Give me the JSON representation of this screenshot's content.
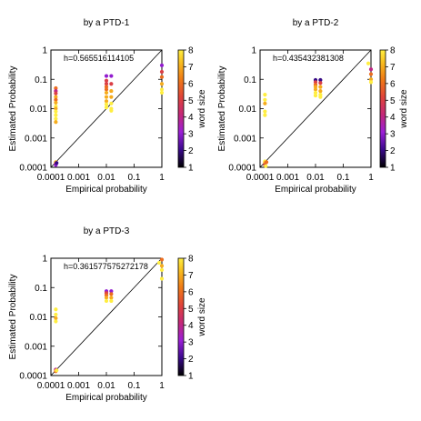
{
  "chart_data": [
    {
      "type": "scatter",
      "title": "by  a PTD-1",
      "xlabel": "Empirical probability",
      "ylabel": "Estimated Probability",
      "xscale": "log",
      "yscale": "log",
      "xlim": [
        0.0001,
        1
      ],
      "ylim": [
        0.0001,
        1
      ],
      "x_ticks": [
        "0.0001",
        "0.001",
        "0.01",
        "0.1",
        "1"
      ],
      "y_ticks": [
        "0.0001",
        "0.001",
        "0.01",
        "0.1",
        "1"
      ],
      "annotation": "h=0.565516114105",
      "colorbar": {
        "label": "word size",
        "range": [
          1,
          8
        ],
        "ticks": [
          "1",
          "2",
          "3",
          "4",
          "5",
          "6",
          "7",
          "8"
        ]
      },
      "reference_line": "y = x",
      "grid": false,
      "points": [
        {
          "x": 0.00015,
          "y": 0.00015,
          "size": 7
        },
        {
          "x": 0.00015,
          "y": 0.00013,
          "size": 5
        },
        {
          "x": 0.00015,
          "y": 0.00012,
          "size": 3
        },
        {
          "x": 0.00016,
          "y": 0.00014,
          "size": 2
        },
        {
          "x": 0.00015,
          "y": 0.05,
          "size": 6
        },
        {
          "x": 0.00015,
          "y": 0.04,
          "size": 4
        },
        {
          "x": 0.00015,
          "y": 0.033,
          "size": 5
        },
        {
          "x": 0.00015,
          "y": 0.025,
          "size": 7
        },
        {
          "x": 0.00015,
          "y": 0.02,
          "size": 6
        },
        {
          "x": 0.00015,
          "y": 0.016,
          "size": 7
        },
        {
          "x": 0.00015,
          "y": 0.012,
          "size": 8
        },
        {
          "x": 0.00015,
          "y": 0.01,
          "size": 7
        },
        {
          "x": 0.00015,
          "y": 0.008,
          "size": 8
        },
        {
          "x": 0.00015,
          "y": 0.006,
          "size": 8
        },
        {
          "x": 0.00015,
          "y": 0.0045,
          "size": 8
        },
        {
          "x": 0.00015,
          "y": 0.0035,
          "size": 7
        },
        {
          "x": 0.01,
          "y": 0.13,
          "size": 3
        },
        {
          "x": 0.01,
          "y": 0.09,
          "size": 5
        },
        {
          "x": 0.01,
          "y": 0.07,
          "size": 5
        },
        {
          "x": 0.01,
          "y": 0.055,
          "size": 6
        },
        {
          "x": 0.01,
          "y": 0.045,
          "size": 6
        },
        {
          "x": 0.01,
          "y": 0.035,
          "size": 7
        },
        {
          "x": 0.01,
          "y": 0.025,
          "size": 7
        },
        {
          "x": 0.01,
          "y": 0.018,
          "size": 7
        },
        {
          "x": 0.01,
          "y": 0.014,
          "size": 8
        },
        {
          "x": 0.01,
          "y": 0.011,
          "size": 8
        },
        {
          "x": 0.015,
          "y": 0.13,
          "size": 3
        },
        {
          "x": 0.015,
          "y": 0.07,
          "size": 5
        },
        {
          "x": 0.015,
          "y": 0.04,
          "size": 7
        },
        {
          "x": 0.015,
          "y": 0.025,
          "size": 7
        },
        {
          "x": 0.015,
          "y": 0.015,
          "size": 8
        },
        {
          "x": 0.015,
          "y": 0.01,
          "size": 8
        },
        {
          "x": 0.015,
          "y": 0.0085,
          "size": 8
        },
        {
          "x": 1,
          "y": 0.3,
          "size": 3
        },
        {
          "x": 1,
          "y": 0.18,
          "size": 5
        },
        {
          "x": 1,
          "y": 0.12,
          "size": 6
        },
        {
          "x": 1,
          "y": 0.07,
          "size": 7
        },
        {
          "x": 1,
          "y": 0.045,
          "size": 8
        },
        {
          "x": 1,
          "y": 0.035,
          "size": 8
        }
      ]
    },
    {
      "type": "scatter",
      "title": "by  a PTD-2",
      "xlabel": "Empirical probability",
      "ylabel": "Estimated Probability",
      "xscale": "log",
      "yscale": "log",
      "xlim": [
        0.0001,
        1
      ],
      "ylim": [
        0.0001,
        1
      ],
      "x_ticks": [
        "0.0001",
        "0.001",
        "0.01",
        "0.1",
        "1"
      ],
      "y_ticks": [
        "0.0001",
        "0.001",
        "0.01",
        "0.1",
        "1"
      ],
      "annotation": "h=0.435432381308",
      "colorbar": {
        "label": "word size",
        "range": [
          1,
          8
        ],
        "ticks": [
          "1",
          "2",
          "3",
          "4",
          "5",
          "6",
          "7",
          "8"
        ]
      },
      "reference_line": "y = x",
      "grid": false,
      "points": [
        {
          "x": 0.00015,
          "y": 0.00016,
          "size": 8
        },
        {
          "x": 0.00015,
          "y": 0.00014,
          "size": 7
        },
        {
          "x": 0.00015,
          "y": 0.00012,
          "size": 5
        },
        {
          "x": 0.00017,
          "y": 0.00015,
          "size": 6
        },
        {
          "x": 0.00016,
          "y": 0.00011,
          "size": 8
        },
        {
          "x": 0.00015,
          "y": 0.03,
          "size": 8
        },
        {
          "x": 0.00015,
          "y": 0.02,
          "size": 8
        },
        {
          "x": 0.00015,
          "y": 0.015,
          "size": 7
        },
        {
          "x": 0.00015,
          "y": 0.008,
          "size": 8
        },
        {
          "x": 0.00015,
          "y": 0.006,
          "size": 8
        },
        {
          "x": 0.01,
          "y": 0.095,
          "size": 2
        },
        {
          "x": 0.01,
          "y": 0.08,
          "size": 5
        },
        {
          "x": 0.01,
          "y": 0.065,
          "size": 6
        },
        {
          "x": 0.01,
          "y": 0.055,
          "size": 7
        },
        {
          "x": 0.01,
          "y": 0.045,
          "size": 7
        },
        {
          "x": 0.01,
          "y": 0.035,
          "size": 8
        },
        {
          "x": 0.01,
          "y": 0.028,
          "size": 8
        },
        {
          "x": 0.015,
          "y": 0.095,
          "size": 2
        },
        {
          "x": 0.015,
          "y": 0.075,
          "size": 5
        },
        {
          "x": 0.015,
          "y": 0.055,
          "size": 7
        },
        {
          "x": 0.015,
          "y": 0.04,
          "size": 7
        },
        {
          "x": 0.015,
          "y": 0.03,
          "size": 8
        },
        {
          "x": 0.015,
          "y": 0.025,
          "size": 8
        },
        {
          "x": 0.8,
          "y": 0.35,
          "size": 8
        },
        {
          "x": 1,
          "y": 0.22,
          "size": 4
        },
        {
          "x": 1,
          "y": 0.15,
          "size": 6
        },
        {
          "x": 1,
          "y": 0.1,
          "size": 7
        },
        {
          "x": 1,
          "y": 0.08,
          "size": 8
        }
      ]
    },
    {
      "type": "scatter",
      "title": "by  a PTD-3",
      "xlabel": "Empirical probability",
      "ylabel": "Estimated Probability",
      "xscale": "log",
      "yscale": "log",
      "xlim": [
        0.0001,
        1
      ],
      "ylim": [
        0.0001,
        1
      ],
      "x_ticks": [
        "0.0001",
        "0.001",
        "0.01",
        "0.1",
        "1"
      ],
      "y_ticks": [
        "0.0001",
        "0.001",
        "0.01",
        "0.1",
        "1"
      ],
      "annotation": "h=0.361577575272178",
      "colorbar": {
        "label": "word size",
        "range": [
          1,
          8
        ],
        "ticks": [
          "1",
          "2",
          "3",
          "4",
          "5",
          "6",
          "7",
          "8"
        ]
      },
      "reference_line": "y = x",
      "grid": false,
      "points": [
        {
          "x": 0.00015,
          "y": 0.00016,
          "size": 4
        },
        {
          "x": 0.00015,
          "y": 0.00014,
          "size": 6
        },
        {
          "x": 0.00016,
          "y": 0.00015,
          "size": 8
        },
        {
          "x": 0.00015,
          "y": 0.018,
          "size": 8
        },
        {
          "x": 0.00015,
          "y": 0.012,
          "size": 8
        },
        {
          "x": 0.00015,
          "y": 0.009,
          "size": 7
        },
        {
          "x": 0.00015,
          "y": 0.007,
          "size": 8
        },
        {
          "x": 0.01,
          "y": 0.075,
          "size": 3
        },
        {
          "x": 0.01,
          "y": 0.065,
          "size": 5
        },
        {
          "x": 0.01,
          "y": 0.055,
          "size": 6
        },
        {
          "x": 0.01,
          "y": 0.045,
          "size": 7
        },
        {
          "x": 0.01,
          "y": 0.035,
          "size": 8
        },
        {
          "x": 0.015,
          "y": 0.075,
          "size": 3
        },
        {
          "x": 0.015,
          "y": 0.06,
          "size": 6
        },
        {
          "x": 0.015,
          "y": 0.045,
          "size": 7
        },
        {
          "x": 0.015,
          "y": 0.035,
          "size": 8
        },
        {
          "x": 0.8,
          "y": 0.7,
          "size": 8
        },
        {
          "x": 1,
          "y": 0.9,
          "size": 6
        },
        {
          "x": 1,
          "y": 0.55,
          "size": 7
        },
        {
          "x": 1,
          "y": 0.4,
          "size": 8
        },
        {
          "x": 1,
          "y": 0.2,
          "size": 8
        }
      ]
    }
  ]
}
